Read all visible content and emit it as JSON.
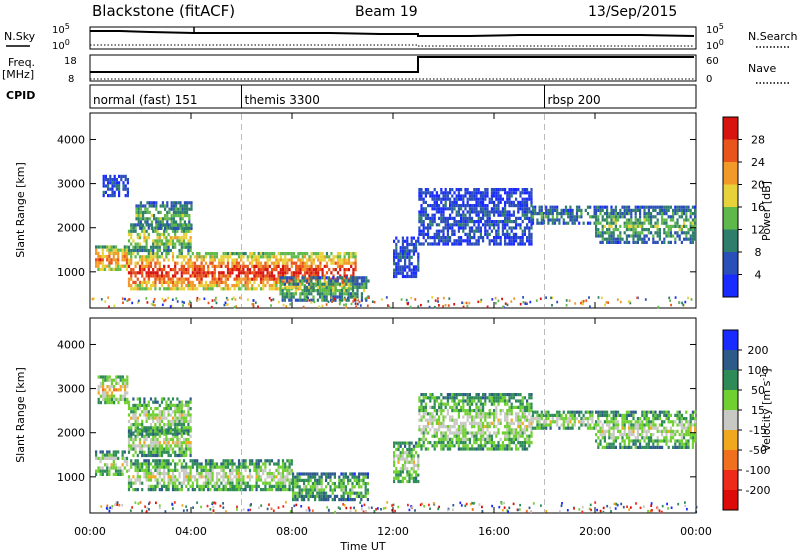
{
  "header": {
    "title": "Blackstone (fitACF)",
    "beam": "Beam 19",
    "date": "13/Sep/2015"
  },
  "left_labels": {
    "nsky": "N.Sky",
    "freq_top": "Freq.",
    "freq_unit": "[MHz]",
    "cpid": "CPID"
  },
  "right_labels": {
    "nsearch": "N.Search",
    "nave": "Nave"
  },
  "noise_panel": {
    "left_ticks": [
      "10^5",
      "10^0"
    ],
    "right_ticks": [
      "10^5",
      "10^0"
    ]
  },
  "freq_panel": {
    "left_ticks": [
      "18",
      "8"
    ],
    "right_ticks": [
      "60",
      "0"
    ]
  },
  "cpid_panel": {
    "modes": [
      {
        "label": "normal (fast) 151",
        "start_hour": 0
      },
      {
        "label": "themis 3300",
        "start_hour": 6
      },
      {
        "label": "rbsp 200",
        "start_hour": 18
      }
    ]
  },
  "time_axis": {
    "ticks": [
      "00:00",
      "04:00",
      "08:00",
      "12:00",
      "16:00",
      "20:00",
      "00:00"
    ],
    "label": "Time UT"
  },
  "chart_data": [
    {
      "type": "heatmap",
      "name": "power",
      "ylabel": "Slant Range [km]",
      "y_ticks": [
        "1000",
        "2000",
        "3000",
        "4000"
      ],
      "ylim": [
        180,
        4600
      ],
      "xlim_hours": [
        0,
        24
      ],
      "colorbar": {
        "label": "Power [dB]",
        "ticks": [
          "4",
          "8",
          "12",
          "16",
          "20",
          "24",
          "28"
        ],
        "colors": [
          "#1a2bff",
          "#2b4fb8",
          "#2f7e6c",
          "#5fb84a",
          "#e8d23a",
          "#f19a2a",
          "#e8541c",
          "#d7140f"
        ]
      },
      "bands": [
        {
          "x0": 0.2,
          "x1": 1.5,
          "y0": 1050,
          "y1": 1600,
          "level": 6
        },
        {
          "x0": 1.5,
          "x1": 4.0,
          "y0": 1500,
          "y1": 2100,
          "level": 4
        },
        {
          "x0": 1.8,
          "x1": 4.0,
          "y0": 2000,
          "y1": 2600,
          "level": 3
        },
        {
          "x0": 0.5,
          "x1": 1.5,
          "y0": 2700,
          "y1": 3200,
          "level": 1
        },
        {
          "x0": 1.5,
          "x1": 10.5,
          "y0": 600,
          "y1": 1450,
          "level": 7
        },
        {
          "x0": 7.5,
          "x1": 11.0,
          "y0": 350,
          "y1": 900,
          "level": 3
        },
        {
          "x0": 12.0,
          "x1": 13.0,
          "y0": 900,
          "y1": 1800,
          "level": 1
        },
        {
          "x0": 13.0,
          "x1": 17.5,
          "y0": 1600,
          "y1": 2900,
          "level": 1
        },
        {
          "x0": 17.5,
          "x1": 20.0,
          "y0": 2100,
          "y1": 2500,
          "level": 2
        },
        {
          "x0": 20.0,
          "x1": 24.0,
          "y0": 1700,
          "y1": 2500,
          "level": 3
        }
      ]
    },
    {
      "type": "heatmap",
      "name": "velocity",
      "ylabel": "Slant Range [km]",
      "y_ticks": [
        "1000",
        "2000",
        "3000",
        "4000"
      ],
      "ylim": [
        180,
        4600
      ],
      "xlim_hours": [
        0,
        24
      ],
      "colorbar": {
        "label": "Velocity [m s^-1]",
        "ticks": [
          "200",
          "100",
          "50",
          "15",
          "-15",
          "-50",
          "-100",
          "-200"
        ],
        "colors": [
          "#1a2bff",
          "#2e5a8a",
          "#2e8b57",
          "#6fd030",
          "#c8c8c4",
          "#f0a81f",
          "#f07020",
          "#ee2a1a",
          "#dd0a0a"
        ]
      },
      "bands": [
        {
          "x0": 0.2,
          "x1": 1.5,
          "y0": 1050,
          "y1": 1600,
          "level": 4
        },
        {
          "x0": 1.5,
          "x1": 4.0,
          "y0": 1500,
          "y1": 2100,
          "level": 4
        },
        {
          "x0": 1.5,
          "x1": 4.0,
          "y0": 2000,
          "y1": 2800,
          "level": 4
        },
        {
          "x0": 0.3,
          "x1": 1.5,
          "y0": 2700,
          "y1": 3300,
          "level": 5
        },
        {
          "x0": 1.5,
          "x1": 8.0,
          "y0": 700,
          "y1": 1400,
          "level": 4
        },
        {
          "x0": 8.0,
          "x1": 11.0,
          "y0": 500,
          "y1": 1100,
          "level": 3
        },
        {
          "x0": 12.0,
          "x1": 13.0,
          "y0": 900,
          "y1": 1800,
          "level": 4
        },
        {
          "x0": 13.0,
          "x1": 17.5,
          "y0": 1600,
          "y1": 2900,
          "level": 4
        },
        {
          "x0": 17.5,
          "x1": 20.0,
          "y0": 2100,
          "y1": 2500,
          "level": 4
        },
        {
          "x0": 20.0,
          "x1": 24.0,
          "y0": 1700,
          "y1": 2500,
          "level": 4
        }
      ]
    }
  ]
}
